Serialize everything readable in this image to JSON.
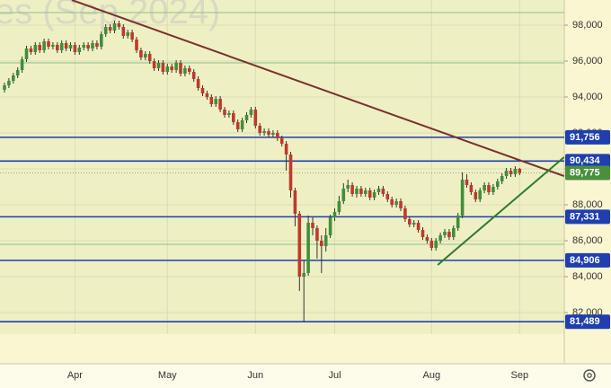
{
  "chart_data": {
    "type": "candlestick",
    "watermark": "es (Sep 2024)",
    "categories": [
      null,
      null,
      null,
      null,
      null,
      null,
      null,
      null,
      null,
      null,
      null,
      null,
      null,
      null,
      null,
      null,
      "Apr",
      null,
      null,
      null,
      null,
      null,
      null,
      null,
      null,
      null,
      null,
      null,
      null,
      null,
      null,
      null,
      null,
      null,
      null,
      null,
      null,
      "May",
      null,
      null,
      null,
      null,
      null,
      null,
      null,
      null,
      null,
      null,
      null,
      null,
      null,
      null,
      null,
      null,
      null,
      null,
      null,
      "Jun",
      null,
      null,
      null,
      null,
      null,
      null,
      null,
      null,
      null,
      null,
      null,
      null,
      null,
      null,
      null,
      null,
      null,
      "Jul",
      null,
      null,
      null,
      null,
      null,
      null,
      null,
      null,
      null,
      null,
      null,
      null,
      null,
      null,
      null,
      null,
      null,
      null,
      null,
      null,
      null,
      "Aug",
      null,
      null,
      null,
      null,
      null,
      null,
      null,
      null,
      null,
      null,
      null,
      null,
      null,
      null,
      null,
      null,
      null,
      null,
      null,
      "Sep"
    ],
    "open": [
      94400,
      94650,
      94900,
      95200,
      95500,
      96100,
      96700,
      96500,
      96900,
      96600,
      97100,
      96800,
      96900,
      96600,
      97000,
      96700,
      96900,
      96500,
      96750,
      96900,
      96700,
      97000,
      96800,
      97500,
      97900,
      97700,
      98100,
      97900,
      97400,
      97600,
      97200,
      96600,
      96200,
      96400,
      96000,
      95600,
      95900,
      95400,
      95700,
      95500,
      95900,
      95300,
      95600,
      95400,
      95000,
      94500,
      94200,
      94000,
      93600,
      93900,
      93300,
      93000,
      93100,
      92600,
      92200,
      92700,
      93000,
      93300,
      92400,
      92000,
      92100,
      91900,
      92000,
      91700,
      91400,
      90800,
      88800,
      87500,
      84000,
      84200,
      87000,
      86700,
      86000,
      85700,
      86300,
      87300,
      87600,
      88200,
      88900,
      89100,
      88600,
      88900,
      88600,
      88800,
      88400,
      88700,
      88900,
      88600,
      88300,
      88000,
      88200,
      87800,
      87200,
      86900,
      87000,
      86600,
      86200,
      86000,
      85600,
      86000,
      86300,
      86500,
      86200,
      86700,
      87400,
      89400,
      89100,
      88700,
      88300,
      88800,
      89100,
      88700,
      89000,
      89300,
      89600,
      89900,
      89700,
      90000
    ],
    "high": [
      94800,
      95050,
      95350,
      95650,
      96250,
      96850,
      96850,
      97050,
      97050,
      97250,
      97250,
      97050,
      97050,
      97150,
      97150,
      97050,
      97050,
      96900,
      97050,
      97050,
      97150,
      97150,
      97650,
      98050,
      98050,
      98250,
      98250,
      98050,
      97750,
      97750,
      97350,
      96750,
      96550,
      96550,
      96150,
      96050,
      96050,
      95850,
      95850,
      96050,
      96050,
      95750,
      95750,
      95550,
      95150,
      94650,
      94350,
      94150,
      94050,
      94050,
      93450,
      93250,
      93250,
      92750,
      92850,
      93150,
      93450,
      93450,
      92550,
      92250,
      92250,
      92150,
      92150,
      91850,
      91550,
      90950,
      88950,
      87650,
      84900,
      87400,
      87300,
      86850,
      86300,
      86700,
      87450,
      87800,
      88500,
      89200,
      89400,
      89250,
      89050,
      89050,
      88950,
      88950,
      88850,
      89050,
      89050,
      88750,
      88450,
      88350,
      88350,
      87950,
      87350,
      87150,
      87150,
      86750,
      86350,
      86150,
      86150,
      86450,
      86650,
      86650,
      86850,
      87550,
      89800,
      89700,
      89250,
      88850,
      88950,
      89250,
      89250,
      89150,
      89450,
      89750,
      90050,
      90050,
      90150,
      90050
    ],
    "low": [
      94250,
      94500,
      94750,
      95050,
      95350,
      95950,
      96350,
      96350,
      96450,
      96450,
      96650,
      96650,
      96450,
      96450,
      96550,
      96550,
      96350,
      96350,
      96600,
      96550,
      96550,
      96650,
      96650,
      97350,
      97550,
      97550,
      97750,
      97250,
      97250,
      97050,
      96450,
      96050,
      96050,
      95850,
      95450,
      95450,
      95250,
      95250,
      95350,
      95350,
      95150,
      95150,
      95250,
      94850,
      94350,
      94050,
      93850,
      93450,
      93450,
      93150,
      92850,
      92850,
      92450,
      92050,
      92050,
      92550,
      92850,
      92250,
      91850,
      91850,
      91750,
      91750,
      91550,
      91250,
      89900,
      88400,
      86800,
      83200,
      81489,
      84050,
      86300,
      85000,
      84200,
      85400,
      86150,
      87100,
      87450,
      88050,
      88700,
      88450,
      88400,
      88450,
      88450,
      88250,
      88250,
      88550,
      88450,
      88150,
      87850,
      87850,
      87650,
      87050,
      86750,
      86750,
      86450,
      86050,
      85850,
      85450,
      85450,
      85850,
      86150,
      86050,
      86050,
      86550,
      87250,
      88950,
      88550,
      88150,
      88150,
      88650,
      88550,
      88550,
      88850,
      89150,
      89450,
      89550,
      89550,
      89650
    ],
    "close": [
      94650,
      94900,
      95200,
      95500,
      96100,
      96700,
      96500,
      96900,
      96600,
      97100,
      96800,
      96900,
      96600,
      97000,
      96700,
      96900,
      96500,
      96750,
      96900,
      96700,
      97000,
      96800,
      97500,
      97900,
      97700,
      98100,
      97900,
      97400,
      97600,
      97200,
      96600,
      96200,
      96400,
      96000,
      95600,
      95900,
      95400,
      95700,
      95500,
      95900,
      95300,
      95600,
      95400,
      95000,
      94500,
      94200,
      94000,
      93600,
      93900,
      93300,
      93000,
      93100,
      92600,
      92200,
      92700,
      93000,
      93300,
      92400,
      92000,
      92100,
      91900,
      92000,
      91700,
      91400,
      90800,
      88800,
      87500,
      84000,
      84200,
      87000,
      86700,
      86000,
      85700,
      86300,
      87300,
      87600,
      88200,
      88900,
      89100,
      88600,
      88900,
      88600,
      88800,
      88400,
      88700,
      88900,
      88600,
      88300,
      88000,
      88200,
      87800,
      87200,
      86900,
      87000,
      86600,
      86200,
      86000,
      85600,
      86000,
      86300,
      86500,
      86200,
      86700,
      87400,
      89400,
      89100,
      88700,
      88300,
      88800,
      89100,
      88700,
      89000,
      89300,
      89600,
      89900,
      89700,
      90000,
      89775
    ],
    "up_color": "#3f8f3a",
    "down_color": "#c0392b",
    "wick_color": "#333333",
    "ylim": [
      80800,
      99400
    ],
    "yticks": [
      {
        "value": 82000,
        "label": "82,000"
      },
      {
        "value": 84000,
        "label": "84,000"
      },
      {
        "value": 86000,
        "label": "86,000"
      },
      {
        "value": 88000,
        "label": "88,000"
      },
      {
        "value": 90000,
        "label": "90,000"
      },
      {
        "value": 92000,
        "label": "92,000"
      },
      {
        "value": 94000,
        "label": "94,000"
      },
      {
        "value": 96000,
        "label": "96,000"
      },
      {
        "value": 98000,
        "label": "98,000"
      }
    ],
    "grid": true,
    "green_levels": [
      98700,
      95900,
      85800
    ],
    "green_level_color": "#8cc08a",
    "levels": [
      {
        "value": 91756,
        "label": "91,756"
      },
      {
        "value": 90434,
        "label": "90,434"
      },
      {
        "value": 87331,
        "label": "87,331"
      },
      {
        "value": 84906,
        "label": "84,906"
      },
      {
        "value": 81489,
        "label": "81,489"
      }
    ],
    "level_color": "#1f3fae",
    "current_price": {
      "value": 89775,
      "label": "89,775"
    },
    "current_color": "#4a8f3c",
    "trendlines": [
      {
        "color": "#7a3030",
        "x": [
          15.3,
          127.1
        ],
        "values": [
          99400,
          89600
        ]
      },
      {
        "color": "#2f7a2a",
        "x": [
          98.4,
          127.1
        ],
        "values": [
          84650,
          90650
        ]
      }
    ]
  }
}
